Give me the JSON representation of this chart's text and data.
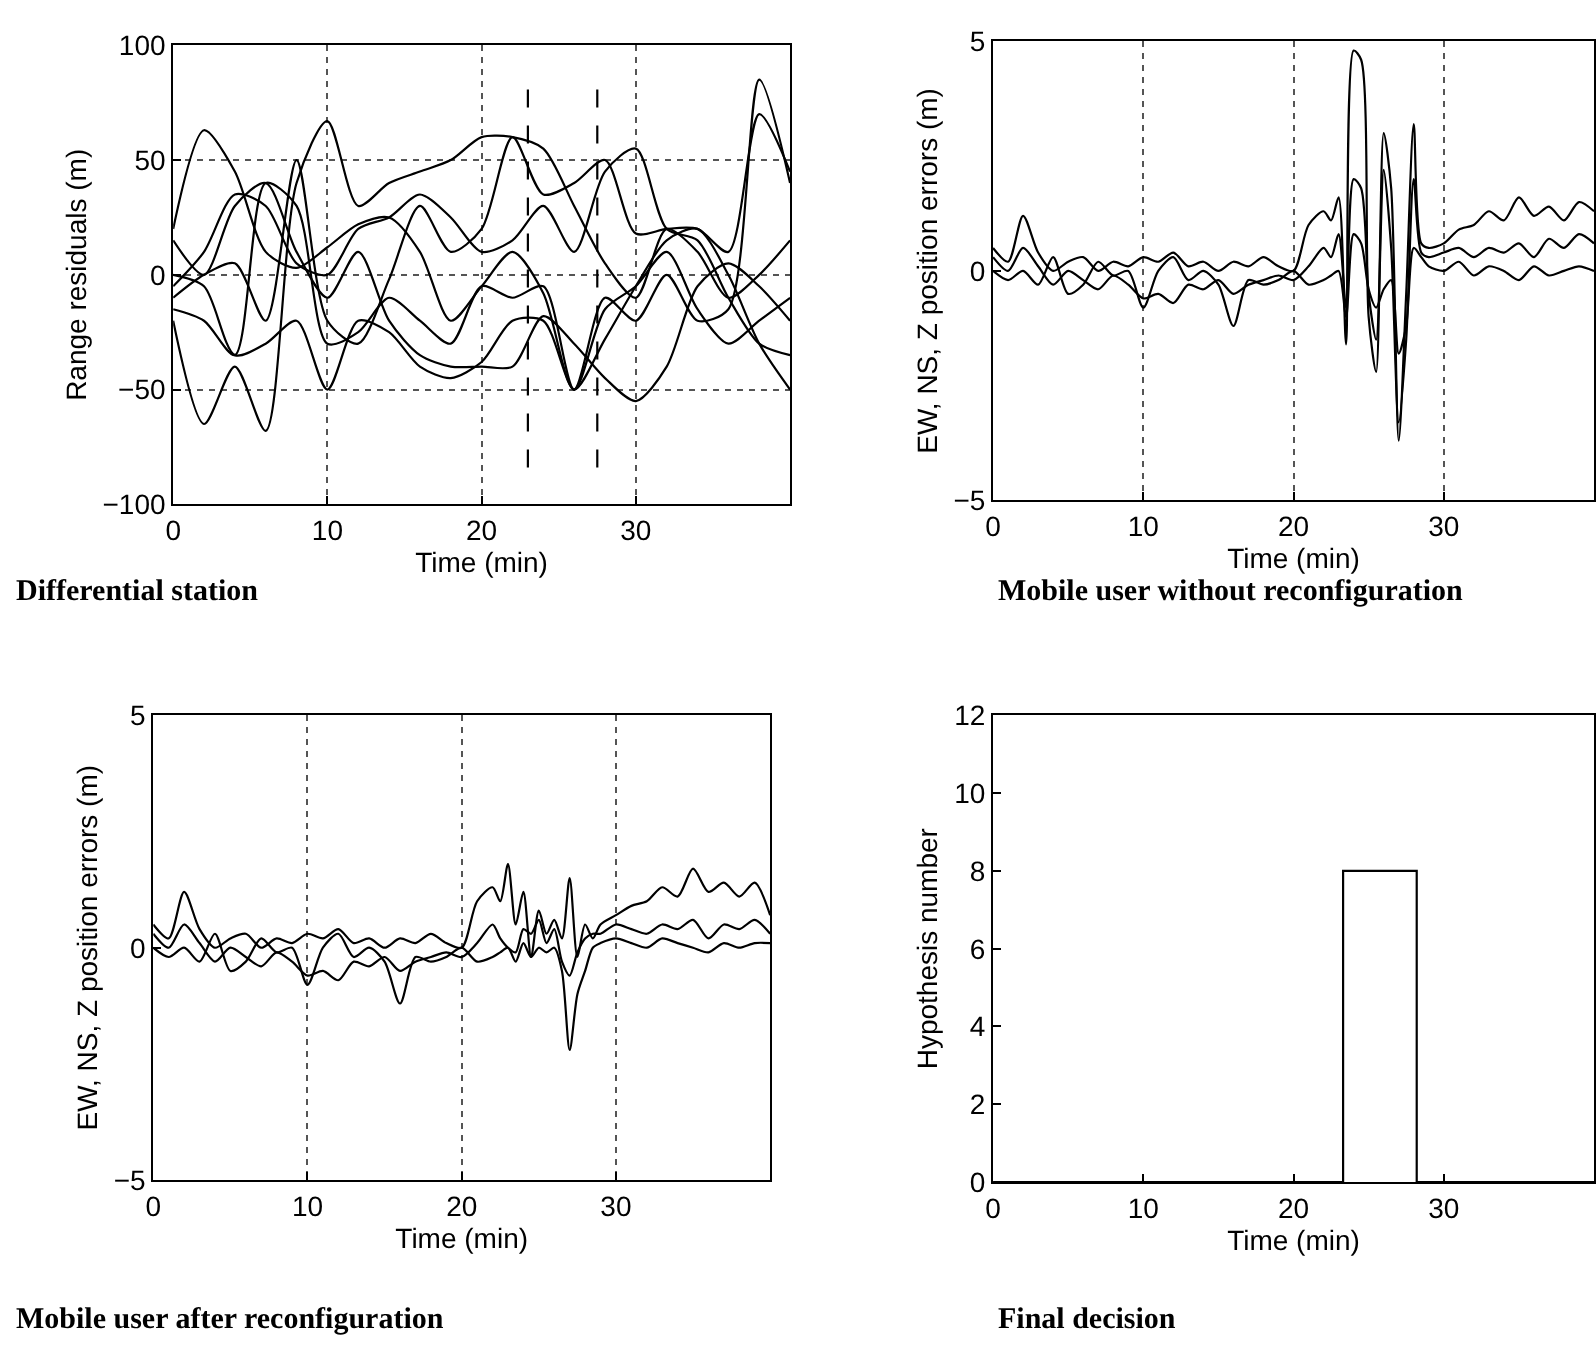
{
  "chart_data": [
    {
      "type": "line",
      "title": "Differential station",
      "xlabel": "Time (min)",
      "ylabel": "Range residuals (m)",
      "x": [
        0,
        2,
        4,
        6,
        8,
        10,
        12,
        14,
        16,
        18,
        20,
        22,
        24,
        26,
        28,
        30,
        32,
        34,
        36,
        38,
        40
      ],
      "series": [
        {
          "color": "#000000",
          "values": [
            20,
            63,
            45,
            10,
            3,
            12,
            22,
            25,
            10,
            -20,
            -5,
            10,
            -8,
            -50,
            -28,
            -5,
            15,
            20,
            0,
            -30,
            -50
          ]
        },
        {
          "color": "#000000",
          "values": [
            -20,
            -65,
            -40,
            -68,
            40,
            67,
            30,
            40,
            45,
            50,
            60,
            60,
            55,
            30,
            5,
            -10,
            20,
            10,
            -10,
            0,
            15
          ]
        },
        {
          "color": "#000000",
          "values": [
            0,
            -5,
            -35,
            -30,
            -20,
            -50,
            -20,
            -25,
            -40,
            -45,
            -38,
            -20,
            -20,
            -50,
            -15,
            -5,
            10,
            -15,
            -30,
            -20,
            -10
          ]
        },
        {
          "color": "#000000",
          "values": [
            15,
            0,
            30,
            40,
            10,
            -10,
            10,
            -20,
            -35,
            -40,
            -40,
            -40,
            -18,
            -30,
            -45,
            -55,
            -40,
            -5,
            5,
            -5,
            -20
          ]
        },
        {
          "color": "#000000",
          "values": [
            -10,
            0,
            5,
            -20,
            50,
            -20,
            -30,
            -2,
            30,
            10,
            20,
            60,
            35,
            40,
            50,
            18,
            20,
            20,
            10,
            70,
            45
          ]
        },
        {
          "color": "#000000",
          "values": [
            -5,
            10,
            35,
            30,
            5,
            0,
            20,
            25,
            35,
            25,
            10,
            15,
            30,
            10,
            45,
            55,
            20,
            15,
            -10,
            -30,
            -35
          ]
        },
        {
          "color": "#000000",
          "values": [
            -15,
            -20,
            -35,
            40,
            30,
            -30,
            -25,
            -10,
            -20,
            -30,
            -5,
            -10,
            -5,
            -50,
            -10,
            -20,
            0,
            -20,
            -15,
            85,
            40
          ]
        }
      ],
      "xlim": [
        0,
        40
      ],
      "xticks": [
        0,
        10,
        20,
        30
      ],
      "ylim": [
        -100,
        100
      ],
      "yticks": [
        {
          "value": -100,
          "label": "−100"
        },
        {
          "value": -50,
          "label": "−50"
        },
        0,
        50,
        100
      ],
      "grid": true,
      "ref_lines": [
        {
          "axis": "x",
          "value": 23,
          "color": "#000000",
          "line_style": "dashed"
        },
        {
          "axis": "x",
          "value": 27.5,
          "color": "#000000",
          "line_style": "dashed"
        }
      ]
    },
    {
      "type": "line",
      "title": "Mobile user without reconfiguration",
      "xlabel": "Time (min)",
      "ylabel": "EW, NS, Z position errors (m)",
      "x": [
        0,
        1,
        2,
        3,
        4,
        5,
        6,
        7,
        8,
        9,
        10,
        11,
        12,
        13,
        14,
        15,
        16,
        17,
        18,
        19,
        20,
        21,
        22,
        22.5,
        23,
        23.5,
        24,
        24.5,
        25,
        25.5,
        26,
        26.5,
        27,
        27.5,
        28,
        28.5,
        29,
        30,
        31,
        32,
        33,
        34,
        35,
        36,
        37,
        38,
        39,
        40
      ],
      "series": [
        {
          "color": "#000000",
          "values": [
            0.5,
            0.2,
            1.2,
            0.4,
            0,
            0.2,
            0.3,
            0,
            0.2,
            0.1,
            0.3,
            0.2,
            0.4,
            0.1,
            0.2,
            0,
            0.2,
            0.1,
            0.3,
            0.1,
            0,
            1.0,
            1.3,
            1.1,
            1.6,
            -1.6,
            4.8,
            4.6,
            -1.0,
            -2.2,
            3.0,
            1.8,
            -3.7,
            -0.5,
            3.2,
            0.6,
            0.5,
            0.6,
            0.9,
            1.0,
            1.3,
            1.1,
            1.6,
            1.2,
            1.4,
            1.1,
            1.5,
            1.3
          ]
        },
        {
          "color": "#000000",
          "values": [
            0.3,
            0,
            0.5,
            0.1,
            -0.3,
            0,
            -0.2,
            -0.4,
            -0.1,
            -0.3,
            -0.6,
            -0.5,
            -0.7,
            -0.3,
            -0.4,
            -0.2,
            -0.5,
            -0.3,
            -0.2,
            -0.1,
            -0.2,
            0.1,
            0.5,
            0.3,
            0.8,
            -0.8,
            2.0,
            1.8,
            -0.5,
            -1.5,
            2.2,
            0.5,
            -3.3,
            -1.5,
            2.0,
            0.4,
            0.3,
            0.4,
            0.5,
            0.3,
            0.5,
            0.4,
            0.6,
            0.3,
            0.7,
            0.5,
            0.8,
            0.6
          ]
        },
        {
          "color": "#000000",
          "values": [
            0,
            -0.2,
            0,
            -0.3,
            0.3,
            -0.5,
            -0.3,
            0.2,
            -0.1,
            0,
            -0.8,
            0,
            0.3,
            -0.2,
            0,
            -0.3,
            -1.2,
            -0.2,
            -0.3,
            -0.2,
            0,
            -0.3,
            -0.2,
            -0.1,
            0,
            -1.0,
            0.8,
            0.6,
            -0.4,
            -0.8,
            -0.4,
            -0.2,
            -1.8,
            -1.2,
            0.5,
            0.3,
            0.1,
            0,
            0.2,
            -0.1,
            0.1,
            0,
            -0.2,
            0.1,
            -0.1,
            0,
            0.1,
            0
          ]
        }
      ],
      "xlim": [
        0,
        40
      ],
      "xticks": [
        0,
        10,
        20,
        30
      ],
      "ylim": [
        -5,
        5
      ],
      "yticks": [
        {
          "value": -5,
          "label": "−5"
        },
        0,
        5
      ],
      "grid": "x"
    },
    {
      "type": "line",
      "title": "Mobile user after reconfiguration",
      "xlabel": "Time (min)",
      "ylabel": "EW, NS, Z position errors (m)",
      "x": [
        0,
        1,
        2,
        3,
        4,
        5,
        6,
        7,
        8,
        9,
        10,
        11,
        12,
        13,
        14,
        15,
        16,
        17,
        18,
        19,
        20,
        21,
        22,
        22.5,
        23,
        23.5,
        24,
        24.5,
        25,
        25.5,
        26,
        26.5,
        27,
        27.5,
        28,
        28.5,
        29,
        30,
        31,
        32,
        33,
        34,
        35,
        36,
        37,
        38,
        39,
        40
      ],
      "series": [
        {
          "color": "#000000",
          "values": [
            0.5,
            0.2,
            1.2,
            0.4,
            0,
            0.2,
            0.3,
            0,
            0.2,
            0.1,
            0.3,
            0.2,
            0.4,
            0.1,
            0.2,
            0,
            0.2,
            0.1,
            0.3,
            0.1,
            0,
            1.0,
            1.3,
            1.0,
            1.8,
            0.5,
            1.2,
            -0.2,
            0.8,
            0.3,
            0.6,
            0.2,
            1.5,
            -0.2,
            0.5,
            0.2,
            0.5,
            0.7,
            0.9,
            1.0,
            1.3,
            1.1,
            1.7,
            1.2,
            1.4,
            1.1,
            1.4,
            0.7
          ]
        },
        {
          "color": "#000000",
          "values": [
            0.3,
            0,
            0.5,
            0.1,
            -0.3,
            0,
            -0.2,
            -0.4,
            -0.1,
            -0.3,
            -0.6,
            -0.5,
            -0.7,
            -0.3,
            -0.4,
            -0.2,
            -0.5,
            -0.3,
            -0.2,
            -0.1,
            -0.2,
            0.1,
            0.5,
            0.2,
            0,
            -0.1,
            0.4,
            0.3,
            0.6,
            0.1,
            0.4,
            -0.3,
            -0.6,
            -0.1,
            0.2,
            0.3,
            0.3,
            0.5,
            0.4,
            0.3,
            0.5,
            0.4,
            0.6,
            0.2,
            0.5,
            0.4,
            0.6,
            0.3
          ]
        },
        {
          "color": "#000000",
          "values": [
            0,
            -0.2,
            0,
            -0.3,
            0.3,
            -0.5,
            -0.3,
            0.2,
            -0.1,
            0,
            -0.8,
            0,
            0.3,
            -0.2,
            0,
            -0.3,
            -1.2,
            -0.2,
            -0.3,
            -0.2,
            0,
            -0.3,
            -0.2,
            -0.1,
            0,
            -0.3,
            0.1,
            -0.2,
            0,
            -0.1,
            0,
            -0.5,
            -2.2,
            -1.0,
            -0.5,
            0,
            0.1,
            0.2,
            0.1,
            0,
            0.2,
            0.1,
            0,
            -0.1,
            0.1,
            0,
            0.1,
            0.1
          ]
        }
      ],
      "xlim": [
        0,
        40
      ],
      "xticks": [
        0,
        10,
        20,
        30
      ],
      "ylim": [
        -5,
        5
      ],
      "yticks": [
        {
          "value": -5,
          "label": "−5"
        },
        0,
        5
      ],
      "grid": "x"
    },
    {
      "type": "step",
      "title": "Final decision",
      "xlabel": "Time (min)",
      "ylabel": "Hypothesis number",
      "x": [
        0,
        23.3,
        28.2,
        40
      ],
      "series": [
        {
          "color": "#000000",
          "values": [
            0,
            8,
            0,
            0
          ]
        }
      ],
      "xlim": [
        0,
        40
      ],
      "xticks": [
        0,
        10,
        20,
        30
      ],
      "ylim": [
        0,
        12
      ],
      "yticks": [
        0,
        2,
        4,
        6,
        8,
        10,
        12
      ],
      "grid": false
    }
  ]
}
